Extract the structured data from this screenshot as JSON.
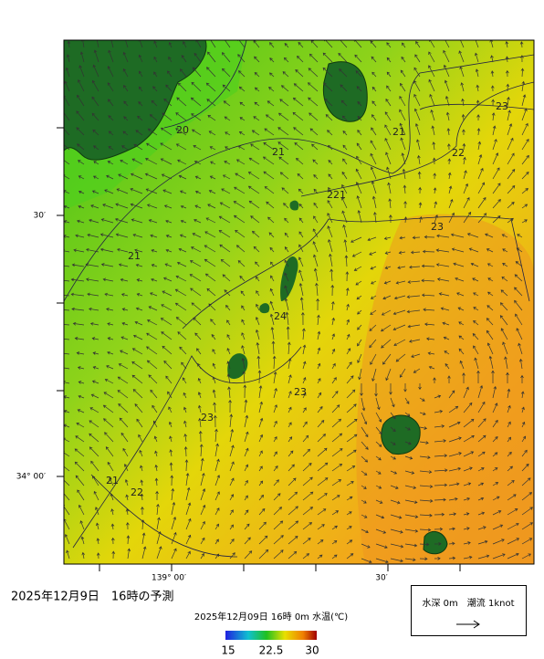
{
  "header": {
    "title": "2025年12月9日　16時の予測",
    "subtitle": "2025年12月09日 16時 0m 水温(℃)"
  },
  "axis": {
    "lat_labels": [
      "30′",
      "34° 00′"
    ],
    "lon_labels": [
      "139° 00′",
      "30′"
    ]
  },
  "contours": {
    "labels": [
      "20",
      "21",
      "21",
      "22",
      "23",
      "221",
      "21",
      "23",
      "24",
      "23",
      "23",
      "21",
      "22"
    ]
  },
  "colorbar": {
    "labels": [
      "15",
      "22.5",
      "30"
    ]
  },
  "legend": {
    "text": "水深 0m　潮流 1knot"
  }
}
